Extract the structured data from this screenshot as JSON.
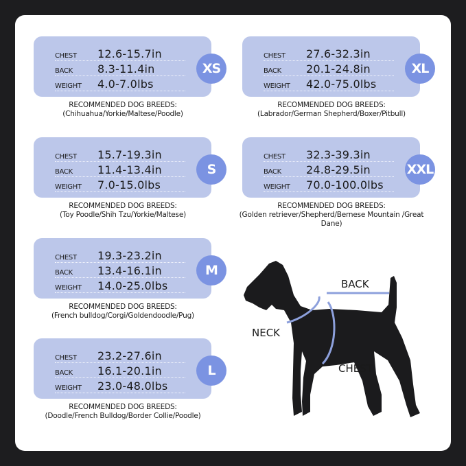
{
  "labels": {
    "chest": "CHEST",
    "back": "BACK",
    "weight": "WEIGHT",
    "recommended": "RECOMMENDED DOG BREEDS:"
  },
  "sizes": [
    {
      "size": "XS",
      "chest": "12.6-15.7in",
      "back": "8.3-11.4in",
      "weight": "4.0-7.0lbs",
      "breeds": "(Chihuahua/Yorkie/Maltese/Poodle)"
    },
    {
      "size": "S",
      "chest": "15.7-19.3in",
      "back": "11.4-13.4in",
      "weight": "7.0-15.0lbs",
      "breeds": "(Toy Poodle/Shih Tzu/Yorkie/Maltese)"
    },
    {
      "size": "M",
      "chest": "19.3-23.2in",
      "back": "13.4-16.1in",
      "weight": "14.0-25.0lbs",
      "breeds": "(French bulldog/Corgi/Goldendoodle/Pug)"
    },
    {
      "size": "L",
      "chest": "23.2-27.6in",
      "back": "16.1-20.1in",
      "weight": "23.0-48.0lbs",
      "breeds": "(Doodle/French Bulldog/Border Collie/Poodle)"
    },
    {
      "size": "XL",
      "chest": "27.6-32.3in",
      "back": "20.1-24.8in",
      "weight": "42.0-75.0lbs",
      "breeds": "(Labrador/German Shepherd/Boxer/Pitbull)"
    },
    {
      "size": "XXL",
      "chest": "32.3-39.3in",
      "back": "24.8-29.5in",
      "weight": "70.0-100.0lbs",
      "breeds": "(Golden retriever/Shepherd/Bernese Mountain /Great Dane)"
    }
  ],
  "diagram": {
    "back": "BACK",
    "neck": "NECK",
    "chest": "CHEST"
  },
  "colors": {
    "card": "#bcc7ea",
    "badge": "#7b93e2",
    "measure_line": "#8da0dc",
    "dog": "#1b1b1d"
  }
}
